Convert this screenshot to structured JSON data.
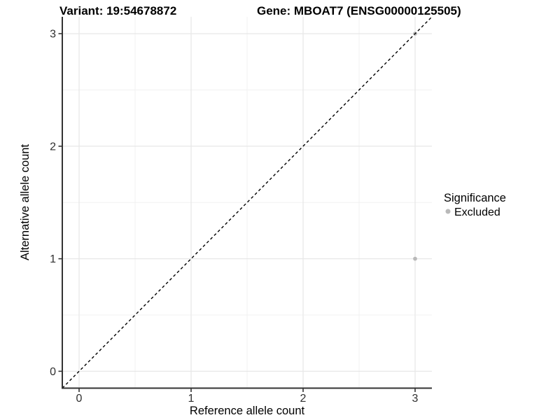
{
  "chart_data": {
    "type": "scatter",
    "title_variant": "Variant: 19:54678872",
    "title_gene": "Gene: MBOAT7 (ENSG00000125505)",
    "xlabel": "Reference allele count",
    "ylabel": "Alternative allele count",
    "xlim": [
      -0.15,
      3.15
    ],
    "ylim": [
      -0.15,
      3.15
    ],
    "xticks": [
      0,
      1,
      2,
      3
    ],
    "yticks": [
      0,
      1,
      2,
      3
    ],
    "minor_ticks": [
      0.5,
      1.5,
      2.5
    ],
    "grid": true,
    "identity_line": {
      "style": "dashed",
      "color": "#000000",
      "from": [
        -0.15,
        -0.15
      ],
      "to": [
        3.15,
        3.15
      ]
    },
    "points": [
      {
        "x": 3,
        "y": 1,
        "significance": "Excluded"
      },
      {
        "x": 3,
        "y": 3,
        "significance": "Excluded"
      }
    ],
    "legend": {
      "position": "right",
      "title": "Significance",
      "items": [
        {
          "label": "Excluded",
          "color": "#b9b9b9"
        }
      ]
    },
    "colors": {
      "point_excluded": "#b9b9b9",
      "grid_major": "#e7e7e7",
      "grid_minor": "#f1f1f1",
      "axis_line": "#333333",
      "tick_label": "#303030",
      "title": "#000000"
    }
  }
}
